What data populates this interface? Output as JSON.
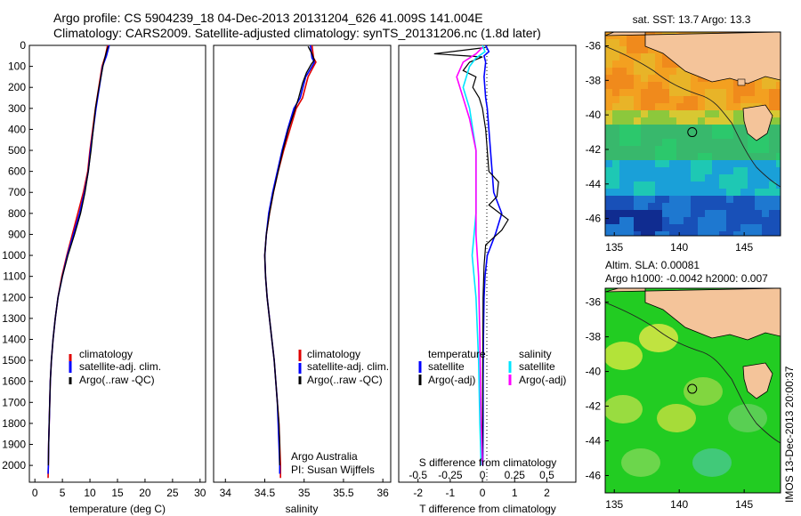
{
  "header": {
    "line1": "Argo profile: CS 5904239_18 04-Dec-2013 20131204_626 41.009S 141.004E",
    "line2": "Climatology: CARS2009. Satellite-adjusted climatology: synTS_20131206.nc (1.8d later)"
  },
  "colors": {
    "climatology": "#e00000",
    "satellite": "#0000ff",
    "argo": "#000000",
    "satellite_salinity": "#00e5ff",
    "argo_salinity_adj": "#ff00ff"
  },
  "chart_data": [
    {
      "type": "line",
      "xlabel": "temperature (deg C)",
      "ylim": [
        2080,
        0
      ],
      "xlim": [
        -1,
        31
      ],
      "xticks": [
        "0",
        "5",
        "10",
        "15",
        "20",
        "25",
        "30"
      ],
      "yticks": [
        "0",
        "100",
        "200",
        "300",
        "400",
        "500",
        "600",
        "700",
        "800",
        "900",
        "1000",
        "1100",
        "1200",
        "1300",
        "1400",
        "1500",
        "1600",
        "1700",
        "1800",
        "1900",
        "2000"
      ],
      "legend": [
        "climatology",
        "satellite-adj. clim.",
        "Argo(..raw -QC)"
      ],
      "series": [
        {
          "name": "climatology",
          "points": [
            [
              13.2,
              0
            ],
            [
              12.8,
              50
            ],
            [
              12.2,
              100
            ],
            [
              11.6,
              200
            ],
            [
              11.0,
              300
            ],
            [
              10.5,
              400
            ],
            [
              10.0,
              500
            ],
            [
              9.6,
              600
            ],
            [
              8.8,
              700
            ],
            [
              7.8,
              800
            ],
            [
              6.8,
              900
            ],
            [
              5.8,
              1000
            ],
            [
              4.9,
              1100
            ],
            [
              4.2,
              1200
            ],
            [
              3.7,
              1300
            ],
            [
              3.3,
              1400
            ],
            [
              3.0,
              1500
            ],
            [
              2.8,
              1600
            ],
            [
              2.7,
              1700
            ],
            [
              2.6,
              1800
            ],
            [
              2.5,
              1900
            ],
            [
              2.45,
              2000
            ],
            [
              2.4,
              2060
            ]
          ]
        },
        {
          "name": "satellite-adj. clim.",
          "points": [
            [
              13.5,
              0
            ],
            [
              13.0,
              50
            ],
            [
              12.3,
              100
            ],
            [
              11.7,
              200
            ],
            [
              11.1,
              300
            ],
            [
              10.6,
              400
            ],
            [
              10.1,
              500
            ],
            [
              9.7,
              600
            ],
            [
              9.0,
              700
            ],
            [
              8.1,
              800
            ],
            [
              7.0,
              900
            ],
            [
              5.9,
              1000
            ],
            [
              5.0,
              1100
            ],
            [
              4.2,
              1200
            ],
            [
              3.7,
              1300
            ],
            [
              3.3,
              1400
            ],
            [
              3.0,
              1500
            ],
            [
              2.8,
              1600
            ],
            [
              2.7,
              1700
            ],
            [
              2.6,
              1800
            ],
            [
              2.5,
              1900
            ],
            [
              2.45,
              2000
            ],
            [
              2.4,
              2040
            ]
          ]
        },
        {
          "name": "Argo(..raw -QC)",
          "points": [
            [
              13.3,
              5
            ],
            [
              13.0,
              30
            ],
            [
              12.5,
              80
            ],
            [
              12.0,
              150
            ],
            [
              11.5,
              220
            ],
            [
              11.0,
              300
            ],
            [
              10.6,
              400
            ],
            [
              10.2,
              500
            ],
            [
              9.7,
              600
            ],
            [
              9.1,
              700
            ],
            [
              8.3,
              800
            ],
            [
              7.2,
              900
            ],
            [
              6.0,
              1000
            ],
            [
              5.0,
              1100
            ],
            [
              4.2,
              1200
            ],
            [
              3.7,
              1300
            ],
            [
              3.3,
              1400
            ],
            [
              3.0,
              1500
            ],
            [
              2.8,
              1600
            ],
            [
              2.7,
              1700
            ],
            [
              2.6,
              1800
            ],
            [
              2.5,
              1900
            ],
            [
              2.45,
              2000
            ]
          ]
        }
      ]
    },
    {
      "type": "line",
      "xlabel": "salinity",
      "ylim": [
        2080,
        0
      ],
      "xlim": [
        33.85,
        36.1
      ],
      "xticks": [
        "34",
        "34.5",
        "35",
        "35.5",
        "36"
      ],
      "legend": [
        "climatology",
        "satellite-adj. clim.",
        "Argo(..raw -QC)"
      ],
      "annotation": [
        "Argo Australia",
        "PI: Susan Wijffels"
      ],
      "series": [
        {
          "name": "climatology",
          "points": [
            [
              35.1,
              0
            ],
            [
              35.12,
              60
            ],
            [
              35.15,
              80
            ],
            [
              35.12,
              100
            ],
            [
              35.05,
              150
            ],
            [
              34.98,
              250
            ],
            [
              34.9,
              300
            ],
            [
              34.82,
              400
            ],
            [
              34.74,
              500
            ],
            [
              34.67,
              600
            ],
            [
              34.61,
              700
            ],
            [
              34.56,
              800
            ],
            [
              34.52,
              900
            ],
            [
              34.5,
              1000
            ],
            [
              34.51,
              1100
            ],
            [
              34.53,
              1200
            ],
            [
              34.56,
              1300
            ],
            [
              34.59,
              1400
            ],
            [
              34.62,
              1500
            ],
            [
              34.64,
              1600
            ],
            [
              34.66,
              1700
            ],
            [
              34.68,
              1800
            ],
            [
              34.69,
              1900
            ],
            [
              34.7,
              2000
            ],
            [
              34.7,
              2060
            ]
          ]
        },
        {
          "name": "satellite-adj. clim.",
          "points": [
            [
              35.08,
              0
            ],
            [
              35.1,
              60
            ],
            [
              35.13,
              80
            ],
            [
              35.1,
              100
            ],
            [
              35.02,
              150
            ],
            [
              34.95,
              250
            ],
            [
              34.87,
              300
            ],
            [
              34.79,
              400
            ],
            [
              34.72,
              500
            ],
            [
              34.66,
              600
            ],
            [
              34.6,
              700
            ],
            [
              34.55,
              800
            ],
            [
              34.52,
              900
            ],
            [
              34.5,
              1000
            ],
            [
              34.51,
              1100
            ],
            [
              34.53,
              1200
            ],
            [
              34.56,
              1300
            ],
            [
              34.59,
              1400
            ],
            [
              34.62,
              1500
            ],
            [
              34.64,
              1600
            ],
            [
              34.66,
              1700
            ],
            [
              34.67,
              1800
            ],
            [
              34.68,
              1900
            ],
            [
              34.69,
              2000
            ],
            [
              34.69,
              2040
            ]
          ]
        },
        {
          "name": "Argo(..raw -QC)",
          "points": [
            [
              35.05,
              5
            ],
            [
              35.1,
              40
            ],
            [
              35.13,
              70
            ],
            [
              35.09,
              90
            ],
            [
              35.03,
              130
            ],
            [
              34.98,
              180
            ],
            [
              34.93,
              250
            ],
            [
              34.87,
              320
            ],
            [
              34.8,
              400
            ],
            [
              34.73,
              500
            ],
            [
              34.67,
              600
            ],
            [
              34.61,
              700
            ],
            [
              34.56,
              800
            ],
            [
              34.52,
              900
            ],
            [
              34.5,
              1000
            ],
            [
              34.51,
              1100
            ],
            [
              34.53,
              1200
            ],
            [
              34.56,
              1300
            ],
            [
              34.59,
              1400
            ],
            [
              34.62,
              1500
            ],
            [
              34.64,
              1600
            ],
            [
              34.66,
              1700
            ],
            [
              34.68,
              1800
            ],
            [
              34.69,
              1900
            ],
            [
              34.69,
              2000
            ]
          ]
        }
      ]
    },
    {
      "type": "line",
      "xlabel": "T difference from climatology",
      "xlim": [
        -2.6,
        2.9
      ],
      "ylim": [
        2080,
        0
      ],
      "xticks": [
        "-2",
        "-1",
        "0",
        "1",
        "2"
      ],
      "secondary_axis": {
        "label": "S difference from climatology",
        "ticks": [
          "-0.5",
          "-0.25",
          "0",
          "0.25",
          "0.5"
        ]
      },
      "legend": {
        "temperature_heading": "temperature",
        "salinity_heading": "salinity",
        "temperature": [
          "satellite",
          "Argo(-adj)"
        ],
        "salinity": [
          "satellite",
          "Argo(-adj)"
        ]
      },
      "series": [
        {
          "name": "T satellite",
          "points": [
            [
              0.1,
              0
            ],
            [
              0.2,
              30
            ],
            [
              0.05,
              50
            ],
            [
              0.1,
              80
            ],
            [
              0.05,
              150
            ],
            [
              0.1,
              250
            ],
            [
              0.15,
              300
            ],
            [
              0.2,
              400
            ],
            [
              0.25,
              500
            ],
            [
              0.3,
              600
            ],
            [
              0.35,
              700
            ],
            [
              0.6,
              800
            ],
            [
              0.4,
              900
            ],
            [
              0.15,
              1000
            ],
            [
              0.08,
              1100
            ],
            [
              0.05,
              1200
            ],
            [
              0.03,
              1400
            ],
            [
              0.02,
              1600
            ],
            [
              0.02,
              1800
            ],
            [
              0.01,
              2000
            ]
          ]
        },
        {
          "name": "T Argo(-adj)",
          "points": [
            [
              0.1,
              10
            ],
            [
              -1.5,
              40
            ],
            [
              0.0,
              55
            ],
            [
              -0.4,
              80
            ],
            [
              -0.6,
              120
            ],
            [
              -0.2,
              150
            ],
            [
              -0.3,
              200
            ],
            [
              -0.1,
              250
            ],
            [
              0.0,
              300
            ],
            [
              0.1,
              400
            ],
            [
              0.15,
              500
            ],
            [
              0.2,
              600
            ],
            [
              0.5,
              650
            ],
            [
              0.45,
              720
            ],
            [
              0.2,
              760
            ],
            [
              0.8,
              830
            ],
            [
              0.6,
              880
            ],
            [
              0.1,
              950
            ],
            [
              0.05,
              1050
            ],
            [
              0.02,
              1200
            ],
            [
              0.01,
              1500
            ],
            [
              0.0,
              2000
            ]
          ]
        },
        {
          "name": "S satellite",
          "points": [
            [
              0.0,
              0
            ],
            [
              0.02,
              30
            ],
            [
              -0.05,
              60
            ],
            [
              -0.1,
              100
            ],
            [
              -0.15,
              200
            ],
            [
              -0.1,
              300
            ],
            [
              -0.05,
              500
            ],
            [
              -0.05,
              800
            ],
            [
              -0.08,
              1000
            ],
            [
              -0.05,
              1200
            ],
            [
              -0.03,
              1500
            ],
            [
              -0.02,
              1800
            ],
            [
              -0.01,
              2000
            ]
          ]
        },
        {
          "name": "S Argo(-adj)",
          "points": [
            [
              0.0,
              10
            ],
            [
              -0.05,
              40
            ],
            [
              -0.15,
              80
            ],
            [
              -0.2,
              150
            ],
            [
              -0.15,
              250
            ],
            [
              -0.1,
              350
            ],
            [
              -0.05,
              500
            ],
            [
              -0.05,
              700
            ],
            [
              -0.05,
              900
            ],
            [
              -0.03,
              1100
            ],
            [
              -0.02,
              1400
            ],
            [
              -0.01,
              1800
            ],
            [
              0.0,
              2000
            ]
          ]
        }
      ]
    },
    {
      "type": "heatmap",
      "title": "sat. SST: 13.7  Argo: 13.3",
      "xticks": [
        "135",
        "140",
        "145"
      ],
      "yticks": [
        "-36",
        "-38",
        "-40",
        "-42",
        "-44",
        "-46"
      ],
      "xlim": [
        134.3,
        147.8
      ],
      "ylim": [
        -47.0,
        -35.2
      ],
      "marker": [
        141.0,
        -41.0
      ]
    },
    {
      "type": "heatmap",
      "title_line1": "Altim. SLA: 0.00081",
      "title_line2": "Argo h1000: -0.0042 h2000: 0.007",
      "xticks": [
        "135",
        "140",
        "145"
      ],
      "yticks": [
        "-36",
        "-38",
        "-40",
        "-42",
        "-44",
        "-46"
      ],
      "xlim": [
        134.3,
        147.8
      ],
      "ylim": [
        -47.0,
        -35.2
      ],
      "marker": [
        141.0,
        -41.0
      ]
    }
  ],
  "footer": {
    "stamp": "IMOS 13-Dec-2013 20:00:37"
  }
}
